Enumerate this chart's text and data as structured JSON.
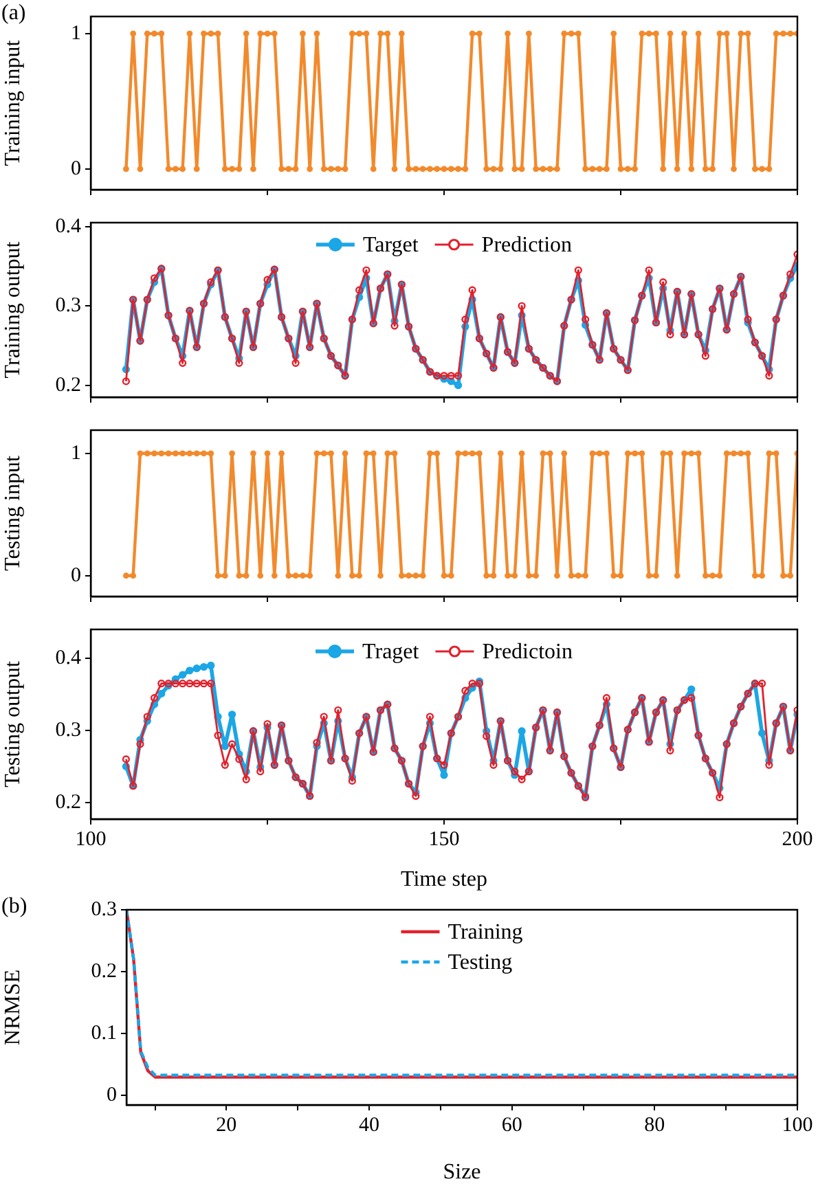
{
  "chart_data": [
    {
      "type": "line",
      "title": "(a)",
      "ylabel": "Training input",
      "tick_labels": "y",
      "marker": "circle",
      "grid": false,
      "x": [
        105,
        106,
        107,
        108,
        109,
        110,
        111,
        112,
        113,
        114,
        115,
        116,
        117,
        118,
        119,
        120,
        121,
        122,
        123,
        124,
        125,
        126,
        127,
        128,
        129,
        130,
        131,
        132,
        133,
        134,
        135,
        136,
        137,
        138,
        139,
        140,
        141,
        142,
        143,
        144,
        145,
        146,
        147,
        148,
        149,
        150,
        151,
        152,
        153,
        154,
        155,
        156,
        157,
        158,
        159,
        160,
        161,
        162,
        163,
        164,
        165,
        166,
        167,
        168,
        169,
        170,
        171,
        172,
        173,
        174,
        175,
        176,
        177,
        178,
        179,
        180,
        181,
        182,
        183,
        184,
        185,
        186,
        187,
        188,
        189,
        190,
        191,
        192,
        193,
        194,
        195,
        196,
        197,
        198,
        199,
        200
      ],
      "xlim": [
        100,
        200
      ],
      "xticks": [
        100,
        {
          "value": 125,
          "label": null
        },
        150,
        {
          "value": 175,
          "label": null
        },
        200
      ],
      "ylim": [
        -0.153,
        1.126
      ],
      "yticks": [
        0,
        1
      ],
      "series": [
        {
          "color": "#f28a2c",
          "values": [
            0,
            1,
            0,
            1,
            1,
            1,
            0,
            0,
            0,
            1,
            0,
            1,
            1,
            1,
            0,
            0,
            0,
            1,
            0,
            1,
            1,
            1,
            0,
            0,
            0,
            1,
            0,
            1,
            0,
            0,
            0,
            0,
            1,
            1,
            1,
            0,
            1,
            1,
            0,
            1,
            0,
            0,
            0,
            0,
            0,
            0,
            0,
            0,
            0,
            1,
            1,
            0,
            0,
            0,
            1,
            0,
            0,
            1,
            0,
            0,
            0,
            0,
            1,
            1,
            1,
            0,
            0,
            0,
            0,
            1,
            0,
            0,
            0,
            1,
            1,
            1,
            0,
            1,
            0,
            1,
            0,
            1,
            0,
            0,
            1,
            1,
            0,
            1,
            1,
            0,
            0,
            0,
            1,
            1,
            1,
            1
          ]
        }
      ]
    },
    {
      "type": "line",
      "ylabel": "Training output",
      "tick_labels": "y",
      "marker": "circle",
      "grid": false,
      "legend": "top",
      "x": [
        105,
        106,
        107,
        108,
        109,
        110,
        111,
        112,
        113,
        114,
        115,
        116,
        117,
        118,
        119,
        120,
        121,
        122,
        123,
        124,
        125,
        126,
        127,
        128,
        129,
        130,
        131,
        132,
        133,
        134,
        135,
        136,
        137,
        138,
        139,
        140,
        141,
        142,
        143,
        144,
        145,
        146,
        147,
        148,
        149,
        150,
        151,
        152,
        153,
        154,
        155,
        156,
        157,
        158,
        159,
        160,
        161,
        162,
        163,
        164,
        165,
        166,
        167,
        168,
        169,
        170,
        171,
        172,
        173,
        174,
        175,
        176,
        177,
        178,
        179,
        180,
        181,
        182,
        183,
        184,
        185,
        186,
        187,
        188,
        189,
        190,
        191,
        192,
        193,
        194,
        195,
        196,
        197,
        198,
        199,
        200
      ],
      "xlim": [
        100,
        200
      ],
      "xticks": [
        100,
        {
          "value": 125,
          "label": null
        },
        150,
        {
          "value": 175,
          "label": null
        },
        200
      ],
      "ylim": [
        0.185,
        0.405
      ],
      "yticks": [
        0.2,
        0.3,
        0.4
      ],
      "series": [
        {
          "name": "Target",
          "color": "#1ba6e6",
          "values": [
            0.22,
            0.308,
            0.256,
            0.308,
            0.33,
            0.347,
            0.288,
            0.259,
            0.237,
            0.294,
            0.248,
            0.303,
            0.327,
            0.345,
            0.286,
            0.259,
            0.234,
            0.293,
            0.248,
            0.303,
            0.327,
            0.346,
            0.286,
            0.259,
            0.237,
            0.293,
            0.248,
            0.303,
            0.259,
            0.237,
            0.225,
            0.212,
            0.283,
            0.311,
            0.335,
            0.278,
            0.322,
            0.34,
            0.281,
            0.327,
            0.274,
            0.246,
            0.232,
            0.217,
            0.212,
            0.208,
            0.205,
            0.2,
            0.274,
            0.308,
            0.259,
            0.24,
            0.222,
            0.286,
            0.242,
            0.228,
            0.288,
            0.246,
            0.232,
            0.222,
            0.212,
            0.205,
            0.275,
            0.308,
            0.332,
            0.276,
            0.251,
            0.232,
            0.291,
            0.246,
            0.232,
            0.219,
            0.282,
            0.313,
            0.335,
            0.279,
            0.322,
            0.269,
            0.318,
            0.264,
            0.315,
            0.264,
            0.244,
            0.296,
            0.322,
            0.27,
            0.315,
            0.337,
            0.279,
            0.254,
            0.237,
            0.22,
            0.283,
            0.313,
            0.335,
            0.351
          ]
        },
        {
          "name": "Prediction",
          "color": "#e3202b",
          "values": [
            0.205,
            0.308,
            0.256,
            0.308,
            0.335,
            0.347,
            0.288,
            0.259,
            0.228,
            0.294,
            0.248,
            0.303,
            0.33,
            0.345,
            0.286,
            0.259,
            0.228,
            0.293,
            0.248,
            0.303,
            0.333,
            0.346,
            0.286,
            0.259,
            0.228,
            0.293,
            0.248,
            0.303,
            0.259,
            0.237,
            0.225,
            0.212,
            0.283,
            0.32,
            0.345,
            0.278,
            0.322,
            0.34,
            0.275,
            0.327,
            0.274,
            0.246,
            0.232,
            0.217,
            0.212,
            0.212,
            0.212,
            0.212,
            0.283,
            0.32,
            0.259,
            0.24,
            0.222,
            0.286,
            0.242,
            0.228,
            0.3,
            0.246,
            0.232,
            0.222,
            0.212,
            0.205,
            0.275,
            0.308,
            0.345,
            0.283,
            0.251,
            0.232,
            0.291,
            0.246,
            0.232,
            0.219,
            0.282,
            0.313,
            0.345,
            0.279,
            0.33,
            0.264,
            0.318,
            0.264,
            0.315,
            0.264,
            0.237,
            0.296,
            0.322,
            0.27,
            0.315,
            0.337,
            0.283,
            0.254,
            0.237,
            0.212,
            0.283,
            0.313,
            0.34,
            0.365
          ]
        }
      ]
    },
    {
      "type": "line",
      "ylabel": "Testing input",
      "tick_labels": "y",
      "marker": "circle",
      "grid": false,
      "x": [
        105,
        106,
        107,
        108,
        109,
        110,
        111,
        112,
        113,
        114,
        115,
        116,
        117,
        118,
        119,
        120,
        121,
        122,
        123,
        124,
        125,
        126,
        127,
        128,
        129,
        130,
        131,
        132,
        133,
        134,
        135,
        136,
        137,
        138,
        139,
        140,
        141,
        142,
        143,
        144,
        145,
        146,
        147,
        148,
        149,
        150,
        151,
        152,
        153,
        154,
        155,
        156,
        157,
        158,
        159,
        160,
        161,
        162,
        163,
        164,
        165,
        166,
        167,
        168,
        169,
        170,
        171,
        172,
        173,
        174,
        175,
        176,
        177,
        178,
        179,
        180,
        181,
        182,
        183,
        184,
        185,
        186,
        187,
        188,
        189,
        190,
        191,
        192,
        193,
        194,
        195,
        196,
        197,
        198,
        199,
        200
      ],
      "xlim": [
        100,
        200
      ],
      "xticks": [
        100,
        {
          "value": 125,
          "label": null
        },
        150,
        {
          "value": 175,
          "label": null
        },
        200
      ],
      "ylim": [
        -0.17,
        1.19
      ],
      "yticks": [
        0,
        1
      ],
      "series": [
        {
          "color": "#f28a2c",
          "values": [
            0,
            0,
            1,
            1,
            1,
            1,
            1,
            1,
            1,
            1,
            1,
            1,
            1,
            0,
            0,
            1,
            0,
            0,
            1,
            0,
            1,
            0,
            1,
            0,
            0,
            0,
            0,
            1,
            1,
            1,
            0,
            1,
            0,
            0,
            1,
            1,
            0,
            1,
            1,
            0,
            0,
            0,
            0,
            1,
            1,
            0,
            0,
            1,
            1,
            1,
            1,
            0,
            0,
            1,
            0,
            0,
            1,
            0,
            0,
            1,
            1,
            0,
            1,
            0,
            0,
            0,
            1,
            1,
            1,
            0,
            0,
            1,
            1,
            1,
            0,
            0,
            1,
            1,
            0,
            1,
            1,
            1,
            0,
            0,
            0,
            1,
            1,
            1,
            1,
            0,
            0,
            1,
            1,
            0,
            0,
            1
          ]
        }
      ]
    },
    {
      "type": "line",
      "ylabel": "Testing output",
      "xlabel": "Time step",
      "marker": "circle",
      "grid": false,
      "legend": "top",
      "x": [
        105,
        106,
        107,
        108,
        109,
        110,
        111,
        112,
        113,
        114,
        115,
        116,
        117,
        118,
        119,
        120,
        121,
        122,
        123,
        124,
        125,
        126,
        127,
        128,
        129,
        130,
        131,
        132,
        133,
        134,
        135,
        136,
        137,
        138,
        139,
        140,
        141,
        142,
        143,
        144,
        145,
        146,
        147,
        148,
        149,
        150,
        151,
        152,
        153,
        154,
        155,
        156,
        157,
        158,
        159,
        160,
        161,
        162,
        163,
        164,
        165,
        166,
        167,
        168,
        169,
        170,
        171,
        172,
        173,
        174,
        175,
        176,
        177,
        178,
        179,
        180,
        181,
        182,
        183,
        184,
        185,
        186,
        187,
        188,
        189,
        190,
        191,
        192,
        193,
        194,
        195,
        196,
        197,
        198,
        199,
        200
      ],
      "xlim": [
        100,
        200
      ],
      "xticks": [
        100,
        {
          "value": 125,
          "label": null
        },
        150,
        {
          "value": 175,
          "label": null
        },
        200
      ],
      "ylim": [
        0.177,
        0.44
      ],
      "yticks": [
        0.2,
        0.3,
        0.4
      ],
      "series": [
        {
          "name": "Traget",
          "color": "#1ba6e6",
          "values": [
            0.25,
            0.223,
            0.287,
            0.313,
            0.336,
            0.351,
            0.362,
            0.371,
            0.377,
            0.383,
            0.386,
            0.388,
            0.39,
            0.319,
            0.278,
            0.322,
            0.267,
            0.243,
            0.299,
            0.249,
            0.304,
            0.252,
            0.307,
            0.258,
            0.235,
            0.226,
            0.209,
            0.278,
            0.31,
            0.258,
            0.313,
            0.261,
            0.235,
            0.296,
            0.319,
            0.27,
            0.328,
            0.336,
            0.275,
            0.258,
            0.226,
            0.214,
            0.278,
            0.31,
            0.261,
            0.238,
            0.296,
            0.319,
            0.345,
            0.359,
            0.368,
            0.299,
            0.258,
            0.313,
            0.258,
            0.238,
            0.299,
            0.243,
            0.304,
            0.328,
            0.272,
            0.325,
            0.264,
            0.241,
            0.223,
            0.209,
            0.278,
            0.307,
            0.336,
            0.275,
            0.249,
            0.301,
            0.325,
            0.345,
            0.284,
            0.325,
            0.342,
            0.281,
            0.328,
            0.342,
            0.357,
            0.293,
            0.261,
            0.241,
            0.22,
            0.281,
            0.31,
            0.333,
            0.351,
            0.365,
            0.296,
            0.258,
            0.31,
            0.333,
            0.272,
            0.322
          ]
        },
        {
          "name": "Predictoin",
          "color": "#e3202b",
          "values": [
            0.26,
            0.223,
            0.281,
            0.319,
            0.345,
            0.365,
            0.365,
            0.365,
            0.365,
            0.365,
            0.365,
            0.365,
            0.365,
            0.293,
            0.252,
            0.281,
            0.26,
            0.232,
            0.299,
            0.243,
            0.309,
            0.252,
            0.307,
            0.258,
            0.235,
            0.226,
            0.209,
            0.283,
            0.319,
            0.258,
            0.328,
            0.261,
            0.23,
            0.296,
            0.319,
            0.27,
            0.328,
            0.336,
            0.275,
            0.258,
            0.226,
            0.209,
            0.278,
            0.319,
            0.261,
            0.252,
            0.296,
            0.319,
            0.355,
            0.365,
            0.365,
            0.292,
            0.252,
            0.313,
            0.258,
            0.243,
            0.232,
            0.243,
            0.304,
            0.328,
            0.272,
            0.325,
            0.264,
            0.241,
            0.223,
            0.207,
            0.278,
            0.307,
            0.345,
            0.275,
            0.249,
            0.301,
            0.325,
            0.345,
            0.284,
            0.325,
            0.342,
            0.272,
            0.328,
            0.342,
            0.345,
            0.293,
            0.261,
            0.241,
            0.207,
            0.281,
            0.31,
            0.333,
            0.351,
            0.365,
            0.365,
            0.252,
            0.31,
            0.333,
            0.272,
            0.328
          ]
        }
      ]
    },
    {
      "type": "line",
      "title": "(b)",
      "xlabel": "Size",
      "ylabel": "NRMSE",
      "marker": "none",
      "grid": false,
      "legend": "top",
      "xlim": [
        6,
        100
      ],
      "xticks": [
        {
          "value": 10,
          "label": null
        },
        20,
        {
          "value": 30,
          "label": null
        },
        40,
        {
          "value": 50,
          "label": null
        },
        60,
        {
          "value": 70,
          "label": null
        },
        80,
        {
          "value": 90,
          "label": null
        },
        100
      ],
      "ylim": [
        -0.015,
        0.3
      ],
      "yticks": [
        0,
        0.1,
        0.2,
        0.3
      ],
      "series": [
        {
          "name": "Training",
          "color": "#e3202b",
          "line_style": "solid",
          "x": [
            6,
            7,
            8,
            9,
            10,
            100
          ],
          "values": [
            0.3,
            0.22,
            0.07,
            0.04,
            0.03,
            0.03
          ]
        },
        {
          "name": "Testing",
          "color": "#1ba6e6",
          "line_style": "dashed",
          "x": [
            6,
            7,
            8,
            9,
            10,
            100
          ],
          "values": [
            0.3,
            0.22,
            0.072,
            0.045,
            0.033,
            0.033
          ]
        }
      ]
    }
  ]
}
